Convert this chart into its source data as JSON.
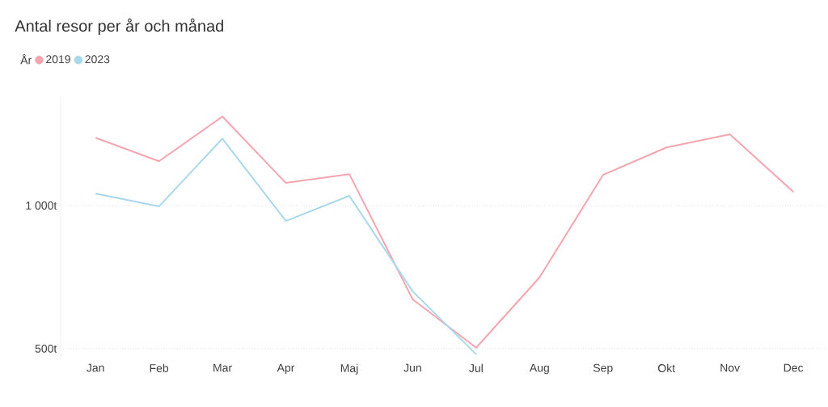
{
  "chart_data": {
    "type": "line",
    "title": "Antal resor per år och månad",
    "legend_title": "År",
    "categories": [
      "Jan",
      "Feb",
      "Mar",
      "Apr",
      "Maj",
      "Jun",
      "Jul",
      "Aug",
      "Sep",
      "Okt",
      "Nov",
      "Dec"
    ],
    "series": [
      {
        "name": "2019",
        "color": "#f4a6b0",
        "values": [
          1237,
          1155,
          1311,
          1079,
          1110,
          672,
          503,
          749,
          1107,
          1203,
          1249,
          1048
        ]
      },
      {
        "name": "2023",
        "color": "#a8d8ea",
        "values": [
          1042,
          997,
          1234,
          946,
          1034,
          700,
          480,
          null,
          null,
          null,
          null,
          null
        ]
      }
    ],
    "ylim": [
      460,
      1380
    ],
    "yticks": [
      {
        "value": 500,
        "label": "500t"
      },
      {
        "value": 1000,
        "label": "1 000t"
      }
    ],
    "grid": "y",
    "legend": "top left",
    "marker": "none",
    "line_style": "solid"
  }
}
